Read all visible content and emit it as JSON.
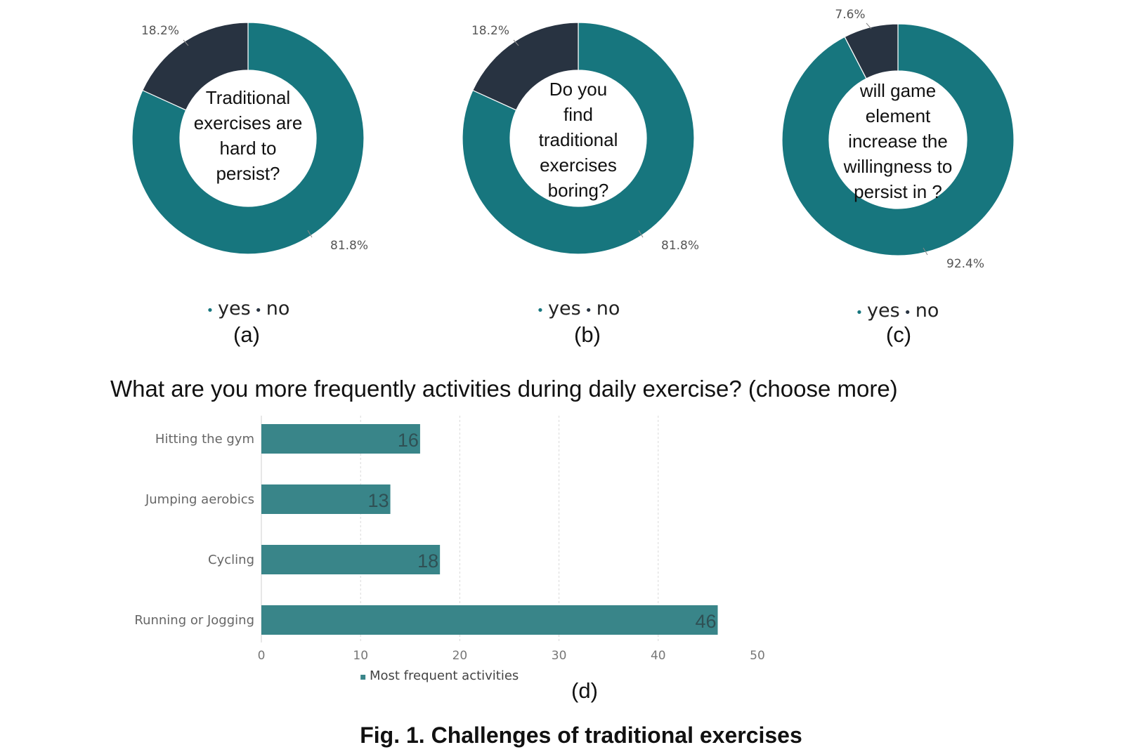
{
  "colors": {
    "yes": "#17767E",
    "no": "#283341",
    "bar": "#398589",
    "grid": "#d9d9d9",
    "axis": "#666666",
    "label": "#555555"
  },
  "chart_data": [
    {
      "type": "pie",
      "subtype": "donut",
      "panel": "(a)",
      "center_text": [
        "Traditional",
        "exercises are",
        "hard to",
        "persist?"
      ],
      "categories": [
        "yes",
        "no"
      ],
      "values": [
        81.8,
        18.2
      ],
      "value_labels": [
        "81.8%",
        "18.2%"
      ],
      "legend": [
        "yes",
        "no"
      ]
    },
    {
      "type": "pie",
      "subtype": "donut",
      "panel": "(b)",
      "center_text": [
        "Do you",
        "find",
        "traditional",
        "exercises",
        "boring?"
      ],
      "categories": [
        "yes",
        "no"
      ],
      "values": [
        81.8,
        18.2
      ],
      "value_labels": [
        "81.8%",
        "18.2%"
      ],
      "legend": [
        "yes",
        "no"
      ]
    },
    {
      "type": "pie",
      "subtype": "donut",
      "panel": "(c)",
      "center_text": [
        "will game",
        "element",
        "increase the",
        "willingness to",
        "persist in ?"
      ],
      "categories": [
        "yes",
        "no"
      ],
      "values": [
        92.4,
        7.6
      ],
      "value_labels": [
        "92.4%",
        "7.6%"
      ],
      "legend": [
        "yes",
        "no"
      ]
    },
    {
      "type": "bar",
      "orientation": "horizontal",
      "panel": "(d)",
      "title": "What are you more frequently activities during daily exercise? (choose more)",
      "categories": [
        "Hitting the gym",
        "Jumping aerobics",
        "Cycling",
        "Running or Jogging"
      ],
      "series": [
        {
          "name": "Most frequent activities",
          "values": [
            16,
            13,
            18,
            46
          ]
        }
      ],
      "xlim": [
        0,
        50
      ],
      "xticks": [
        0,
        10,
        20,
        30,
        40,
        50
      ],
      "grid": true,
      "legend": "bottom"
    }
  ],
  "caption": "Fig. 1. Challenges of traditional exercises"
}
